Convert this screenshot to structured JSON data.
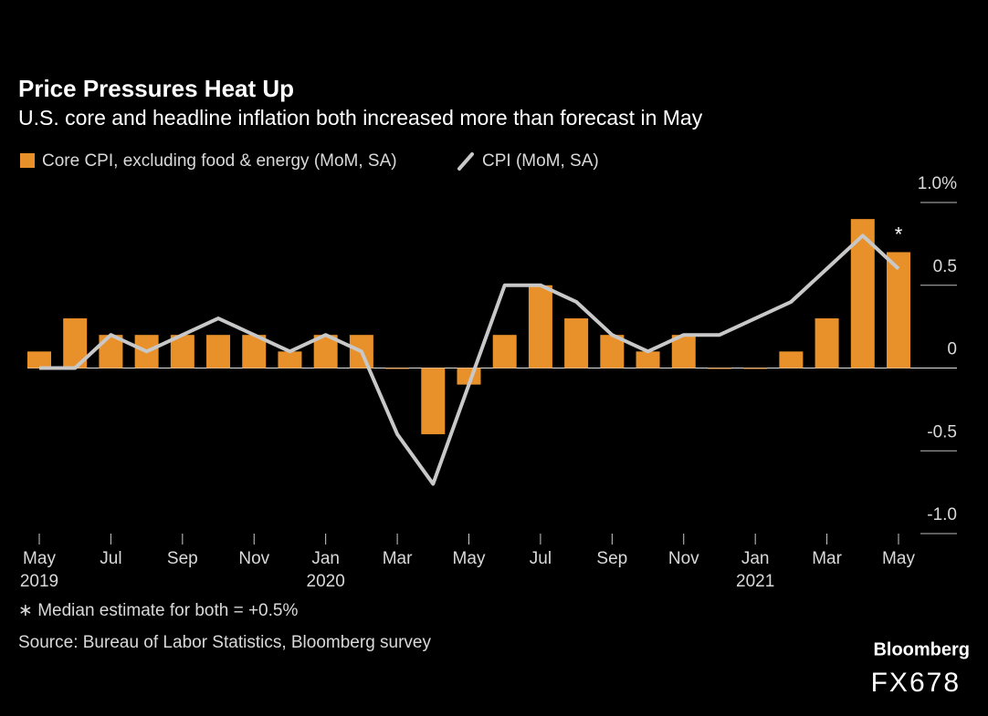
{
  "chart_data": {
    "type": "bar_line",
    "title": "Price Pressures Heat Up",
    "subtitle": "U.S. core and headline inflation both increased more than forecast in May",
    "categories": [
      "May",
      null,
      "Jul",
      null,
      "Sep",
      null,
      "Nov",
      null,
      "Jan",
      null,
      "Mar",
      null,
      "May",
      null,
      "Jul",
      null,
      "Sep",
      null,
      "Nov",
      null,
      "Jan",
      null,
      "Mar",
      null,
      "May"
    ],
    "category_years": [
      "2019",
      null,
      null,
      null,
      null,
      null,
      null,
      null,
      "2020",
      null,
      null,
      null,
      null,
      null,
      null,
      null,
      null,
      null,
      null,
      null,
      "2021",
      null,
      null,
      null,
      null
    ],
    "series": [
      {
        "name": "Core CPI, excluding food & energy (MoM, SA)",
        "type": "bar",
        "color": "#e8902a",
        "values": [
          0.1,
          0.3,
          0.2,
          0.2,
          0.2,
          0.2,
          0.2,
          0.1,
          0.2,
          0.2,
          0.0,
          -0.4,
          -0.1,
          0.2,
          0.5,
          0.3,
          0.2,
          0.1,
          0.2,
          0.0,
          0.0,
          0.1,
          0.3,
          0.9,
          0.7
        ]
      },
      {
        "name": "CPI (MoM, SA)",
        "type": "line",
        "color": "#c8c8c8",
        "values": [
          0.0,
          0.0,
          0.2,
          0.1,
          0.2,
          0.3,
          0.2,
          0.1,
          0.2,
          0.1,
          -0.4,
          -0.7,
          -0.1,
          0.5,
          0.5,
          0.4,
          0.2,
          0.1,
          0.2,
          0.2,
          0.3,
          0.4,
          0.6,
          0.8,
          0.6
        ]
      }
    ],
    "ylim": [
      -1.0,
      1.0
    ],
    "yticks": [
      {
        "value": 1.0,
        "label": "1.0%"
      },
      0.5,
      0,
      -0.5,
      {
        "value": -1.0,
        "label": "-1.0"
      }
    ],
    "annotation": "*",
    "footnote": "∗ Median estimate for both = +0.5%",
    "source": "Source: Bureau of Labor Statistics, Bloomberg survey",
    "brand": "Bloomberg",
    "watermark": "FX678"
  }
}
